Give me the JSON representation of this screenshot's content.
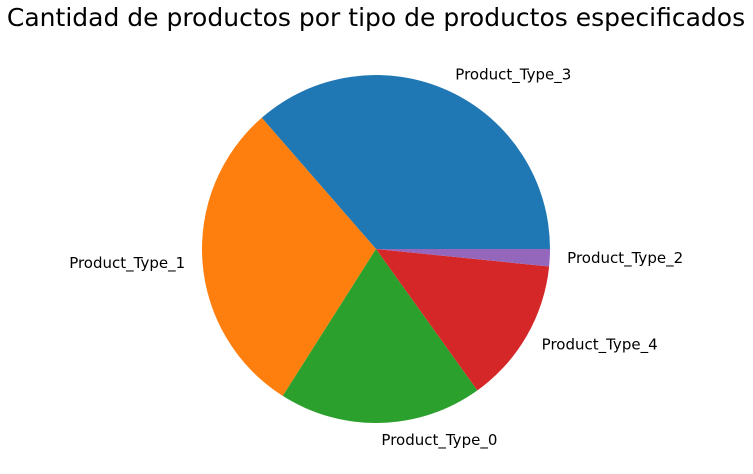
{
  "chart_data": {
    "type": "pie",
    "title": "Cantidad de productos por tipo de productos especificados",
    "start_angle": "3 o'clock, counterclockwise",
    "slices": [
      {
        "label": "Product_Type_3",
        "value": 36.4,
        "color": "#1f77b4"
      },
      {
        "label": "Product_Type_1",
        "value": 29.6,
        "color": "#ff7f0e"
      },
      {
        "label": "Product_Type_0",
        "value": 18.9,
        "color": "#2ca02c"
      },
      {
        "label": "Product_Type_4",
        "value": 13.5,
        "color": "#d62728"
      },
      {
        "label": "Product_Type_2",
        "value": 1.6,
        "color": "#9467bd"
      }
    ]
  }
}
